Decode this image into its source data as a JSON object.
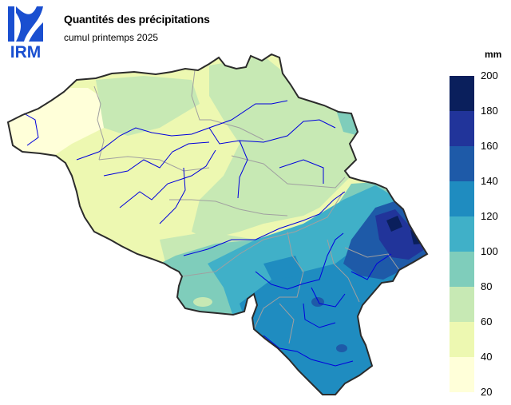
{
  "header": {
    "logo_text": "IRM",
    "title": "Quantités des précipitations",
    "subtitle": "cumul printemps 2025"
  },
  "legend": {
    "unit": "mm",
    "ticks": [
      "200",
      "180",
      "160",
      "140",
      "120",
      "100",
      "80",
      "60",
      "40",
      "20"
    ],
    "classes": [
      {
        "range": [
          180,
          200
        ],
        "color": "#0a1f5c"
      },
      {
        "range": [
          160,
          180
        ],
        "color": "#21349a"
      },
      {
        "range": [
          140,
          160
        ],
        "color": "#1e5aa8"
      },
      {
        "range": [
          120,
          140
        ],
        "color": "#1f8cc0"
      },
      {
        "range": [
          100,
          120
        ],
        "color": "#40b0c8"
      },
      {
        "range": [
          80,
          100
        ],
        "color": "#7fcdbb"
      },
      {
        "range": [
          60,
          80
        ],
        "color": "#c7e9b4"
      },
      {
        "range": [
          40,
          60
        ],
        "color": "#edf8b1"
      },
      {
        "range": [
          20,
          40
        ],
        "color": "#ffffd9"
      }
    ]
  },
  "colors": {
    "border": "#2b2b2b",
    "provinces": "#a0a0a0",
    "rivers": "#0000dd",
    "logo": "#1a4fd0"
  }
}
